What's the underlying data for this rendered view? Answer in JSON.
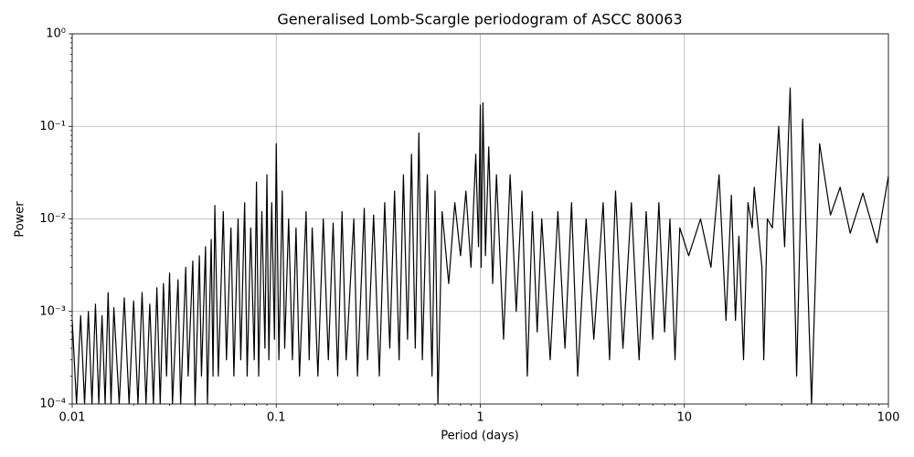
{
  "chart_data": {
    "type": "line",
    "title": "Generalised Lomb-Scargle periodogram of ASCC 80063",
    "x_label": "Period (days)",
    "y_label": "Power",
    "log_x": true,
    "log_y": true,
    "grid": true,
    "xlim": [
      0.01,
      100
    ],
    "ylim": [
      0.0001,
      1
    ],
    "xticks": [
      0.01,
      0.1,
      1,
      10,
      100
    ],
    "yticks": [
      {
        "value": 0.0001,
        "label": "10⁻⁴"
      },
      {
        "value": 0.001,
        "label": "10⁻³"
      },
      {
        "value": 0.01,
        "label": "10⁻²"
      },
      {
        "value": 0.1,
        "label": "10⁻¹"
      },
      {
        "value": 1,
        "label": "10⁰"
      }
    ],
    "x": [
      0.01,
      0.0105,
      0.011,
      0.0115,
      0.012,
      0.0125,
      0.013,
      0.0135,
      0.014,
      0.0145,
      0.015,
      0.0155,
      0.016,
      0.017,
      0.018,
      0.019,
      0.02,
      0.021,
      0.022,
      0.023,
      0.024,
      0.025,
      0.026,
      0.027,
      0.028,
      0.029,
      0.03,
      0.031,
      0.033,
      0.034,
      0.036,
      0.037,
      0.039,
      0.04,
      0.042,
      0.043,
      0.045,
      0.046,
      0.048,
      0.049,
      0.05,
      0.052,
      0.055,
      0.057,
      0.06,
      0.062,
      0.065,
      0.067,
      0.07,
      0.072,
      0.075,
      0.078,
      0.08,
      0.082,
      0.085,
      0.088,
      0.09,
      0.092,
      0.095,
      0.098,
      0.1,
      0.103,
      0.107,
      0.11,
      0.115,
      0.12,
      0.125,
      0.13,
      0.14,
      0.145,
      0.15,
      0.16,
      0.17,
      0.18,
      0.19,
      0.2,
      0.21,
      0.22,
      0.24,
      0.25,
      0.27,
      0.28,
      0.3,
      0.32,
      0.34,
      0.36,
      0.38,
      0.4,
      0.42,
      0.44,
      0.46,
      0.48,
      0.5,
      0.52,
      0.55,
      0.58,
      0.6,
      0.62,
      0.65,
      0.7,
      0.75,
      0.8,
      0.85,
      0.9,
      0.95,
      0.98,
      1.0,
      1.01,
      1.03,
      1.06,
      1.1,
      1.15,
      1.2,
      1.3,
      1.4,
      1.5,
      1.6,
      1.7,
      1.8,
      1.9,
      2.0,
      2.2,
      2.4,
      2.6,
      2.8,
      3.0,
      3.3,
      3.6,
      4.0,
      4.3,
      4.6,
      5.0,
      5.5,
      6.0,
      6.5,
      7.0,
      7.5,
      8.0,
      8.5,
      9.0,
      9.5,
      10.5,
      12,
      13.5,
      14.8,
      16,
      17,
      17.8,
      18.5,
      19.5,
      20.5,
      21.5,
      22,
      24,
      24.5,
      25.5,
      27,
      29,
      31,
      33,
      35.5,
      38,
      42,
      46,
      52,
      58,
      65,
      75,
      88,
      100
    ],
    "series": [
      {
        "color": "#000000",
        "values": [
          0.0008,
          0.0001,
          0.0009,
          0.0001,
          0.001,
          0.0001,
          0.0012,
          0.0001,
          0.0009,
          0.0001,
          0.0016,
          0.0001,
          0.0011,
          0.0001,
          0.0014,
          0.0001,
          0.0013,
          0.0001,
          0.0016,
          0.0001,
          0.0012,
          0.0001,
          0.0018,
          0.0001,
          0.002,
          0.0002,
          0.0026,
          0.0001,
          0.0022,
          0.0001,
          0.003,
          0.0002,
          0.0035,
          0.0001,
          0.004,
          0.0002,
          0.005,
          0.0001,
          0.006,
          0.0002,
          0.014,
          0.0002,
          0.012,
          0.0003,
          0.008,
          0.0002,
          0.01,
          0.0003,
          0.015,
          0.0002,
          0.008,
          0.0003,
          0.025,
          0.0002,
          0.012,
          0.0004,
          0.03,
          0.0003,
          0.015,
          0.0005,
          0.065,
          0.0003,
          0.02,
          0.0004,
          0.01,
          0.0003,
          0.008,
          0.0002,
          0.012,
          0.0003,
          0.008,
          0.0002,
          0.01,
          0.0003,
          0.009,
          0.0002,
          0.012,
          0.0003,
          0.01,
          0.0002,
          0.013,
          0.0003,
          0.011,
          0.0002,
          0.015,
          0.0004,
          0.02,
          0.0003,
          0.03,
          0.0005,
          0.05,
          0.0004,
          0.085,
          0.0003,
          0.03,
          0.0002,
          0.02,
          0.0001,
          0.012,
          0.002,
          0.015,
          0.004,
          0.02,
          0.003,
          0.05,
          0.005,
          0.17,
          0.003,
          0.18,
          0.004,
          0.06,
          0.002,
          0.03,
          0.0005,
          0.03,
          0.001,
          0.02,
          0.0002,
          0.012,
          0.0006,
          0.01,
          0.0003,
          0.012,
          0.0004,
          0.015,
          0.0002,
          0.01,
          0.0005,
          0.015,
          0.0003,
          0.02,
          0.0004,
          0.015,
          0.0003,
          0.012,
          0.0005,
          0.015,
          0.0006,
          0.01,
          0.0003,
          0.008,
          0.004,
          0.01,
          0.003,
          0.03,
          0.0008,
          0.018,
          0.0008,
          0.0065,
          0.0003,
          0.015,
          0.008,
          0.022,
          0.003,
          0.0003,
          0.01,
          0.008,
          0.1,
          0.005,
          0.26,
          0.0002,
          0.12,
          0.0001,
          0.065,
          0.011,
          0.022,
          0.007,
          0.019,
          0.0055,
          0.029
        ]
      }
    ]
  }
}
